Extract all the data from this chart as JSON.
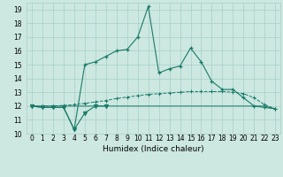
{
  "xlabel": "Humidex (Indice chaleur)",
  "x": [
    0,
    1,
    2,
    3,
    4,
    5,
    6,
    7,
    8,
    9,
    10,
    11,
    12,
    13,
    14,
    15,
    16,
    17,
    18,
    19,
    20,
    21,
    22,
    23
  ],
  "line_main": [
    12.0,
    11.9,
    11.9,
    11.9,
    10.3,
    15.0,
    15.2,
    15.6,
    16.0,
    16.1,
    17.0,
    19.2,
    14.4,
    14.7,
    14.9,
    16.2,
    15.2,
    13.8,
    13.2,
    13.2,
    12.6,
    12.0,
    11.9,
    11.8
  ],
  "line_smooth": [
    12.0,
    12.0,
    12.0,
    12.05,
    12.1,
    12.2,
    12.3,
    12.4,
    12.55,
    12.65,
    12.75,
    12.85,
    12.9,
    12.95,
    13.0,
    13.05,
    13.05,
    13.05,
    13.05,
    13.0,
    12.9,
    12.6,
    12.1,
    11.8
  ],
  "line_flat": [
    12.0,
    12.0,
    12.0,
    12.0,
    12.0,
    12.0,
    12.0,
    12.0,
    12.0,
    12.0,
    12.0,
    12.0,
    12.0,
    12.0,
    12.0,
    12.0,
    12.0,
    12.0,
    12.0,
    12.0,
    12.0,
    12.0,
    12.0,
    11.8
  ],
  "line_partial_x": [
    0,
    1,
    2,
    3,
    4,
    5,
    6,
    7
  ],
  "line_partial_y": [
    12.0,
    11.9,
    11.9,
    11.9,
    10.3,
    11.5,
    12.0,
    12.0
  ],
  "color": "#1a7a6a",
  "bg_color": "#cce8e0",
  "grid_color": "#a8cfc8",
  "ylim": [
    10,
    19.5
  ],
  "yticks": [
    10,
    11,
    12,
    13,
    14,
    15,
    16,
    17,
    18,
    19
  ],
  "xtick_labels": [
    "0",
    "1",
    "2",
    "3",
    "4",
    "5",
    "6",
    "7",
    "8",
    "9",
    "10",
    "11",
    "12",
    "13",
    "14",
    "15",
    "16",
    "17",
    "18",
    "19",
    "20",
    "21",
    "22",
    "23"
  ]
}
